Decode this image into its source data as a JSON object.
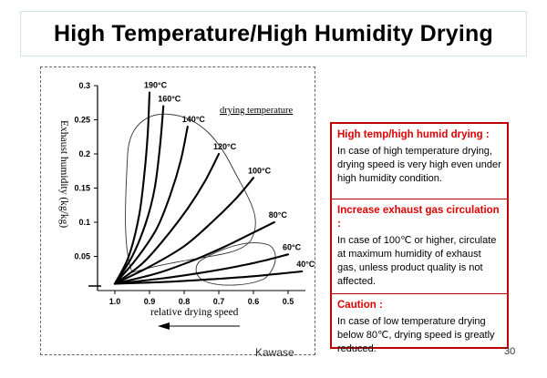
{
  "slide": {
    "title": "High Temperature/High Humidity Drying",
    "footer_author": "Kawase",
    "page_number": "30"
  },
  "notes": [
    {
      "heading": "High temp/high humid drying :",
      "body": "In case of high temperature drying, drying speed is very high even under high humidity condition."
    },
    {
      "heading": "Increase exhaust gas circulation :",
      "body": "In case of 100℃ or higher, circulate at maximum humidity of exhaust gas, unless product quality is not affected."
    },
    {
      "heading": "Caution :",
      "body": "In case of low temperature drying below 80℃, drying speed is greatly reduced."
    }
  ],
  "chart_data": {
    "type": "line",
    "xlabel": "relative drying speed",
    "ylabel": "Exhaust humidity (kg/kg)",
    "annotation": "drying temperature",
    "x_ticks": [
      "1.0",
      "0.9",
      "0.8",
      "0.7",
      "0.6",
      "0.5"
    ],
    "y_ticks": [
      "0.05",
      "0.1",
      "0.15",
      "0.2",
      "0.25",
      "0.3"
    ],
    "xlim": [
      1.05,
      0.45
    ],
    "ylim": [
      0,
      0.3
    ],
    "x_reversed": true,
    "grid": false,
    "series": [
      {
        "name": "190°C",
        "x": [
          1.0,
          0.96,
          0.93,
          0.915,
          0.905,
          0.9
        ],
        "y": [
          0.01,
          0.05,
          0.11,
          0.17,
          0.23,
          0.29
        ]
      },
      {
        "name": "160°C",
        "x": [
          1.0,
          0.95,
          0.91,
          0.885,
          0.87,
          0.86
        ],
        "y": [
          0.01,
          0.05,
          0.1,
          0.15,
          0.21,
          0.27
        ]
      },
      {
        "name": "140°C",
        "x": [
          1.0,
          0.94,
          0.88,
          0.84,
          0.81,
          0.79
        ],
        "y": [
          0.01,
          0.045,
          0.09,
          0.14,
          0.19,
          0.24
        ]
      },
      {
        "name": "120°C",
        "x": [
          1.0,
          0.92,
          0.85,
          0.79,
          0.74,
          0.7
        ],
        "y": [
          0.01,
          0.04,
          0.08,
          0.12,
          0.16,
          0.2
        ]
      },
      {
        "name": "100°C",
        "x": [
          1.0,
          0.9,
          0.8,
          0.72,
          0.65,
          0.6
        ],
        "y": [
          0.01,
          0.035,
          0.065,
          0.1,
          0.135,
          0.165
        ]
      },
      {
        "name": "80°C",
        "x": [
          1.0,
          0.88,
          0.77,
          0.68,
          0.6,
          0.54
        ],
        "y": [
          0.01,
          0.025,
          0.045,
          0.065,
          0.085,
          0.1
        ]
      },
      {
        "name": "60°C",
        "x": [
          1.0,
          0.86,
          0.74,
          0.64,
          0.56,
          0.5
        ],
        "y": [
          0.01,
          0.018,
          0.027,
          0.036,
          0.045,
          0.053
        ]
      },
      {
        "name": "40°C",
        "x": [
          1.0,
          0.84,
          0.71,
          0.6,
          0.52,
          0.46
        ],
        "y": [
          0.01,
          0.013,
          0.017,
          0.021,
          0.025,
          0.028
        ]
      }
    ]
  }
}
